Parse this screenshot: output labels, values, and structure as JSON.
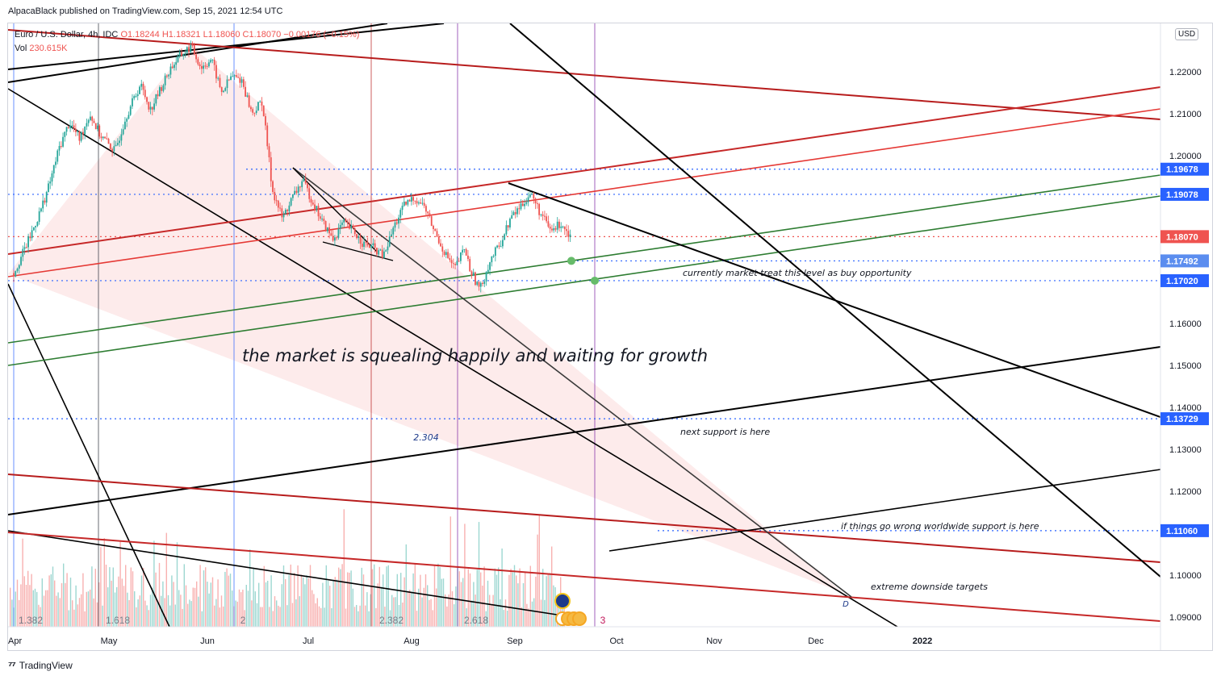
{
  "header": {
    "published": "AlpacaBlack published on TradingView.com, Sep 15, 2021 12:54 UTC"
  },
  "legend": {
    "symbol": "Euro / U.S. Dollar, 4h, IDC",
    "ohlc": "O1.18244  H1.18321  L1.18060  C1.18070  −0.00176 (−0.15%)",
    "volume_label": "Vol",
    "volume_value": "230.615K"
  },
  "currency": "USD",
  "footer": {
    "brand": "TradingView"
  },
  "chart_data": {
    "type": "candlestick",
    "symbol": "EURUSD",
    "timeframe": "4h",
    "x_ticks": [
      "Apr",
      "May",
      "Jun",
      "Jul",
      "Aug",
      "Sep",
      "Oct",
      "Nov",
      "Dec",
      "2022"
    ],
    "y_ticks": [
      "1.22000",
      "1.21000",
      "1.20000",
      "1.16000",
      "1.15000",
      "1.14000",
      "1.13000",
      "1.12000",
      "1.11000",
      "1.10000",
      "1.09000"
    ],
    "y_range": [
      1.088,
      1.231
    ],
    "price_badges": [
      {
        "label": "1.19678",
        "value": 1.19678,
        "color": "#2962ff"
      },
      {
        "label": "1.19078",
        "value": 1.19078,
        "color": "#2962ff"
      },
      {
        "label": "1.18070",
        "value": 1.1807,
        "color": "#ef5350"
      },
      {
        "label": "1.17492",
        "value": 1.17492,
        "color": "#5b8def"
      },
      {
        "label": "1.17020",
        "value": 1.1702,
        "color": "#2962ff"
      },
      {
        "label": "1.13729",
        "value": 1.13729,
        "color": "#2962ff"
      },
      {
        "label": "1.11060",
        "value": 1.1106,
        "color": "#2962ff"
      }
    ],
    "price_path": [
      [
        0.0,
        1.172
      ],
      [
        0.03,
        1.18
      ],
      [
        0.05,
        1.186
      ],
      [
        0.07,
        1.193
      ],
      [
        0.09,
        1.202
      ],
      [
        0.11,
        1.208
      ],
      [
        0.13,
        1.204
      ],
      [
        0.15,
        1.21
      ],
      [
        0.17,
        1.205
      ],
      [
        0.2,
        1.201
      ],
      [
        0.22,
        1.209
      ],
      [
        0.25,
        1.217
      ],
      [
        0.27,
        1.211
      ],
      [
        0.29,
        1.216
      ],
      [
        0.31,
        1.221
      ],
      [
        0.33,
        1.224
      ],
      [
        0.35,
        1.226
      ],
      [
        0.37,
        1.221
      ],
      [
        0.39,
        1.223
      ],
      [
        0.41,
        1.215
      ],
      [
        0.43,
        1.219
      ],
      [
        0.45,
        1.218
      ],
      [
        0.47,
        1.21
      ],
      [
        0.49,
        1.213
      ],
      [
        0.5,
        1.203
      ],
      [
        0.51,
        1.192
      ],
      [
        0.53,
        1.185
      ],
      [
        0.55,
        1.19
      ],
      [
        0.57,
        1.194
      ],
      [
        0.59,
        1.189
      ],
      [
        0.61,
        1.184
      ],
      [
        0.63,
        1.18
      ],
      [
        0.65,
        1.184
      ],
      [
        0.67,
        1.182
      ],
      [
        0.69,
        1.179
      ],
      [
        0.71,
        1.178
      ],
      [
        0.73,
        1.176
      ],
      [
        0.75,
        1.183
      ],
      [
        0.77,
        1.188
      ],
      [
        0.79,
        1.19
      ],
      [
        0.81,
        1.188
      ],
      [
        0.83,
        1.182
      ],
      [
        0.85,
        1.177
      ],
      [
        0.87,
        1.173
      ],
      [
        0.89,
        1.178
      ],
      [
        0.9,
        1.173
      ],
      [
        0.92,
        1.168
      ],
      [
        0.94,
        1.175
      ],
      [
        0.96,
        1.179
      ],
      [
        0.98,
        1.185
      ],
      [
        1.0,
        1.188
      ],
      [
        1.02,
        1.191
      ],
      [
        1.04,
        1.186
      ],
      [
        1.06,
        1.182
      ],
      [
        1.08,
        1.184
      ],
      [
        1.1,
        1.1807
      ]
    ],
    "fib_markers": [
      "1.382",
      "1.618",
      "2",
      "2.382",
      "2.618",
      "3"
    ],
    "fib_label": "2.304",
    "pattern_label": "D",
    "annotations": [
      "currently market treat this level as buy opportunity",
      "the market is squealing happily and waiting for growth",
      "next support is here",
      "if things go wrong worldwide support is here",
      "extreme downside targets"
    ]
  }
}
